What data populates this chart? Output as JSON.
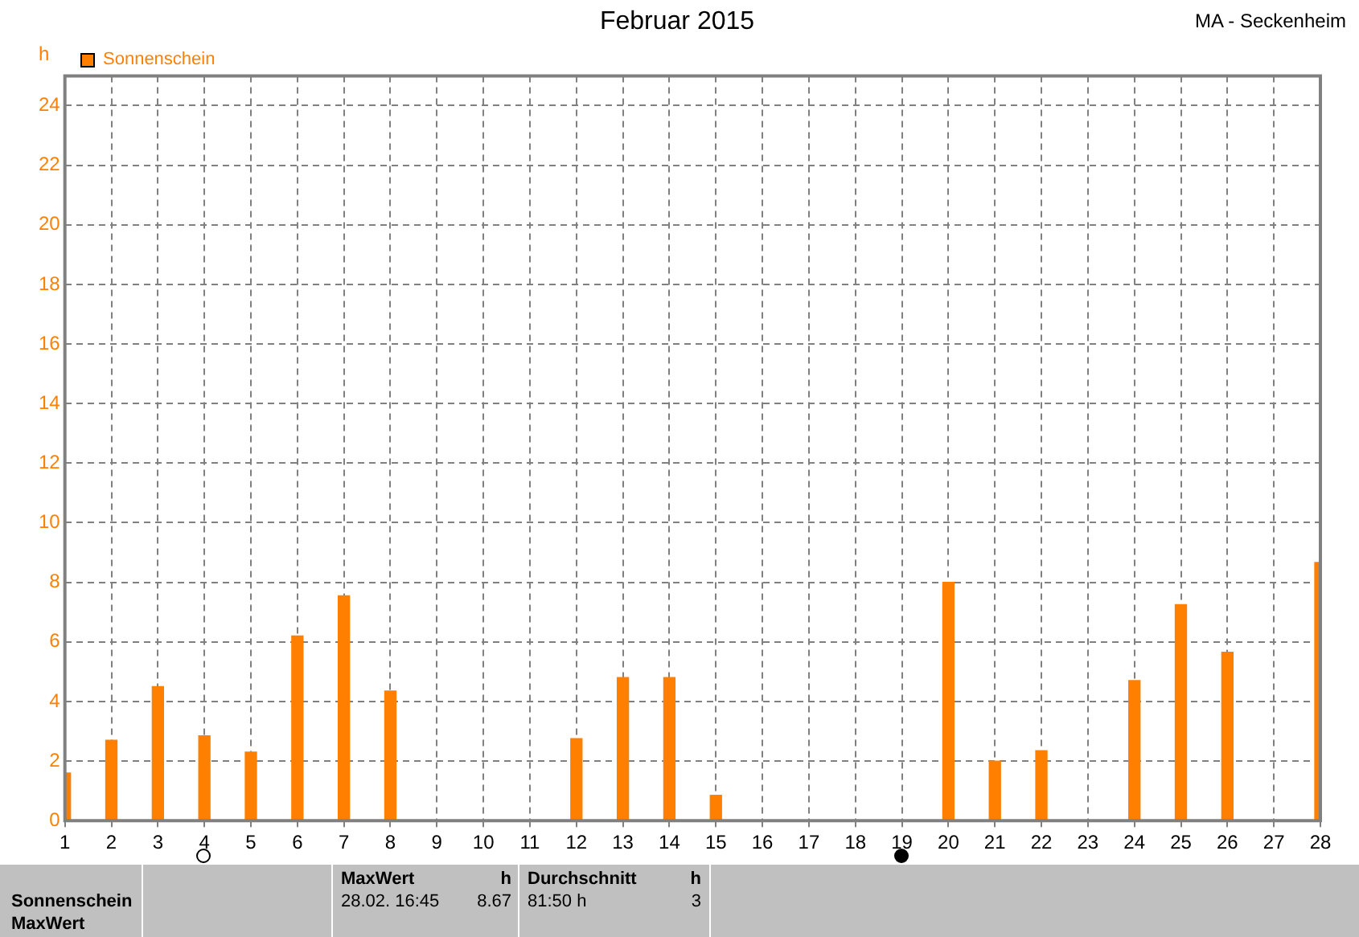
{
  "chart_data": {
    "type": "bar",
    "title": "Februar 2015",
    "subtitle": "MA - Seckenheim",
    "ylabel": "h",
    "x": [
      1,
      2,
      3,
      4,
      5,
      6,
      7,
      8,
      9,
      10,
      11,
      12,
      13,
      14,
      15,
      16,
      17,
      18,
      19,
      20,
      21,
      22,
      23,
      24,
      25,
      26,
      27,
      28
    ],
    "series": [
      {
        "name": "Sonnenschein",
        "color": "#ff8000",
        "values": [
          1.6,
          2.7,
          4.5,
          2.85,
          2.3,
          6.2,
          7.55,
          4.35,
          0,
          0,
          0,
          2.75,
          4.8,
          4.8,
          0.85,
          0,
          0,
          0,
          0,
          8.0,
          2.0,
          2.35,
          0,
          4.7,
          7.25,
          5.65,
          0,
          8.67
        ]
      }
    ],
    "xlim": [
      1,
      28
    ],
    "xticks": [
      1,
      2,
      3,
      4,
      5,
      6,
      7,
      8,
      9,
      10,
      11,
      12,
      13,
      14,
      15,
      16,
      17,
      18,
      19,
      20,
      21,
      22,
      23,
      24,
      25,
      26,
      27,
      28
    ],
    "ylim": [
      0,
      25
    ],
    "yticks": [
      0,
      2,
      4,
      6,
      8,
      10,
      12,
      14,
      16,
      18,
      20,
      22,
      24
    ],
    "grid": true,
    "legend": "top left",
    "annotations": [
      "Sonnenschein",
      "MaxWert",
      "MaxWert",
      "h",
      "28.02.  16:45",
      "8.67",
      "Durchschnitt",
      "h",
      "81:50 h",
      "3"
    ]
  }
}
